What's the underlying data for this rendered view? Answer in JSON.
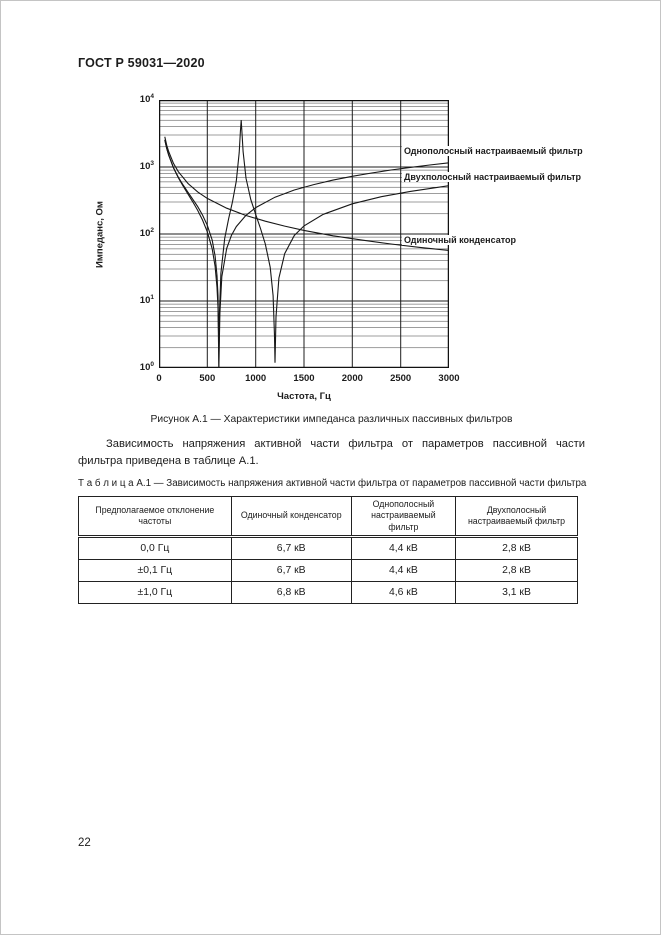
{
  "page": {
    "header": "ГОСТ Р 59031—2020",
    "page_number": "22"
  },
  "figure": {
    "caption": "Рисунок А.1 — Характеристики импеданса различных пассивных фильтров",
    "chart_data": {
      "type": "line",
      "title": "",
      "xlabel": "Частота, Гц",
      "ylabel": "Импеданс, Ом",
      "x_scale": "linear",
      "y_scale": "log",
      "xlim": [
        0,
        3000
      ],
      "ylim": [
        1,
        10000
      ],
      "x_ticks": [
        "0",
        "500",
        "1000",
        "1500",
        "2000",
        "2500",
        "3000"
      ],
      "y_ticks": [
        "10^0",
        "10^1",
        "10^2",
        "10^3",
        "10^4"
      ],
      "grid": "major vertical every 500 Hz; log major and minor horizontal lines",
      "legend_position": "text labels at right side of plot",
      "line_color": "#171717",
      "series": [
        {
          "id": "single-tuned-filter",
          "label": "Однополосный настраиваемый фильтр",
          "description": "series-resonant filter, notch at ~620 Hz, rises to ~1.2 kOhm at 3000 Hz",
          "points": [
            [
              60,
              2551
            ],
            [
              80,
              1899
            ],
            [
              100,
              1505
            ],
            [
              150,
              970
            ],
            [
              200,
              692
            ],
            [
              250,
              517
            ],
            [
              300,
              394
            ],
            [
              350,
              301
            ],
            [
              400,
              225
            ],
            [
              450,
              162
            ],
            [
              500,
              108
            ],
            [
              550,
              60
            ],
            [
              580,
              33
            ],
            [
              600,
              16
            ],
            [
              610,
              8
            ],
            [
              618,
              1.6
            ],
            [
              620,
              1
            ],
            [
              622,
              1.7
            ],
            [
              630,
              6.6
            ],
            [
              650,
              23
            ],
            [
              700,
              61
            ],
            [
              750,
              96
            ],
            [
              800,
              129
            ],
            [
              900,
              190
            ],
            [
              1000,
              248
            ],
            [
              1200,
              354
            ],
            [
              1400,
              453
            ],
            [
              1600,
              547
            ],
            [
              1800,
              638
            ],
            [
              2000,
              727
            ],
            [
              2200,
              814
            ],
            [
              2400,
              901
            ],
            [
              2600,
              986
            ],
            [
              2800,
              1071
            ],
            [
              3000,
              1155
            ]
          ]
        },
        {
          "id": "double-tuned-filter",
          "label": "Двухполосный настраиваемый фильтр",
          "description": "double-tuned filter, notches at ~620 Hz and ~1200 Hz, peak ~5 kOhm at ~850 Hz",
          "points": [
            [
              60,
              2536
            ],
            [
              80,
              1892
            ],
            [
              100,
              1502
            ],
            [
              150,
              977
            ],
            [
              200,
              706
            ],
            [
              250,
              537
            ],
            [
              300,
              419
            ],
            [
              350,
              329
            ],
            [
              400,
              256
            ],
            [
              450,
              192
            ],
            [
              500,
              135
            ],
            [
              550,
              81
            ],
            [
              580,
              47
            ],
            [
              600,
              24
            ],
            [
              610,
              12
            ],
            [
              618,
              2.5
            ],
            [
              620,
              1
            ],
            [
              625,
              6.3
            ],
            [
              640,
              26
            ],
            [
              680,
              86
            ],
            [
              720,
              168
            ],
            [
              760,
              303
            ],
            [
              800,
              619
            ],
            [
              830,
              1640
            ],
            [
              842,
              3400
            ],
            [
              850,
              5000
            ],
            [
              858,
              3400
            ],
            [
              870,
              1700
            ],
            [
              900,
              680
            ],
            [
              950,
              326
            ],
            [
              1000,
              196
            ],
            [
              1050,
              121
            ],
            [
              1100,
              71
            ],
            [
              1150,
              32
            ],
            [
              1180,
              12
            ],
            [
              1195,
              3
            ],
            [
              1200,
              1.2
            ],
            [
              1210,
              5.8
            ],
            [
              1240,
              22
            ],
            [
              1300,
              51
            ],
            [
              1400,
              95
            ],
            [
              1500,
              132
            ],
            [
              1700,
              197
            ],
            [
              2000,
              282
            ],
            [
              2300,
              360
            ],
            [
              2600,
              432
            ],
            [
              3000,
              525
            ]
          ]
        },
        {
          "id": "single-capacitor",
          "label": "Одиночный конденсатор",
          "description": "capacitive impedance 1/(2πfC), smoothly decreasing from ~2.8 kOhm at 60 Hz to ~57 Ohm at 3000 Hz",
          "points": [
            [
              60,
              2833
            ],
            [
              80,
              2125
            ],
            [
              100,
              1700
            ],
            [
              150,
              1133
            ],
            [
              200,
              850
            ],
            [
              300,
              567
            ],
            [
              400,
              425
            ],
            [
              500,
              340
            ],
            [
              700,
              243
            ],
            [
              900,
              189
            ],
            [
              1100,
              155
            ],
            [
              1300,
              131
            ],
            [
              1500,
              113
            ],
            [
              1800,
              94
            ],
            [
              2100,
              81
            ],
            [
              2400,
              71
            ],
            [
              2700,
              63
            ],
            [
              3000,
              57
            ]
          ]
        }
      ]
    }
  },
  "body_paragraph": "Зависимость напряжения активной части фильтра от параметров пассивной части фильтра приведена в таблице А.1.",
  "table": {
    "title": "Т а б л и ц а  А.1 — Зависимость напряжения активной части фильтра от параметров пассивной части фильтра",
    "headers": [
      "Предполагаемое отклонение частоты",
      "Одиночный конденсатор",
      "Однополосный настраиваемый фильтр",
      "Двухполосный настраиваемый фильтр"
    ],
    "col_widths_pct": [
      31,
      24,
      20.6,
      24.4
    ],
    "rows": [
      [
        "0,0 Гц",
        "6,7 кВ",
        "4,4 кВ",
        "2,8 кВ"
      ],
      [
        "±0,1 Гц",
        "6,7 кВ",
        "4,4 кВ",
        "2,8 кВ"
      ],
      [
        "±1,0 Гц",
        "6,8 кВ",
        "4,6 кВ",
        "3,1 кВ"
      ]
    ]
  }
}
